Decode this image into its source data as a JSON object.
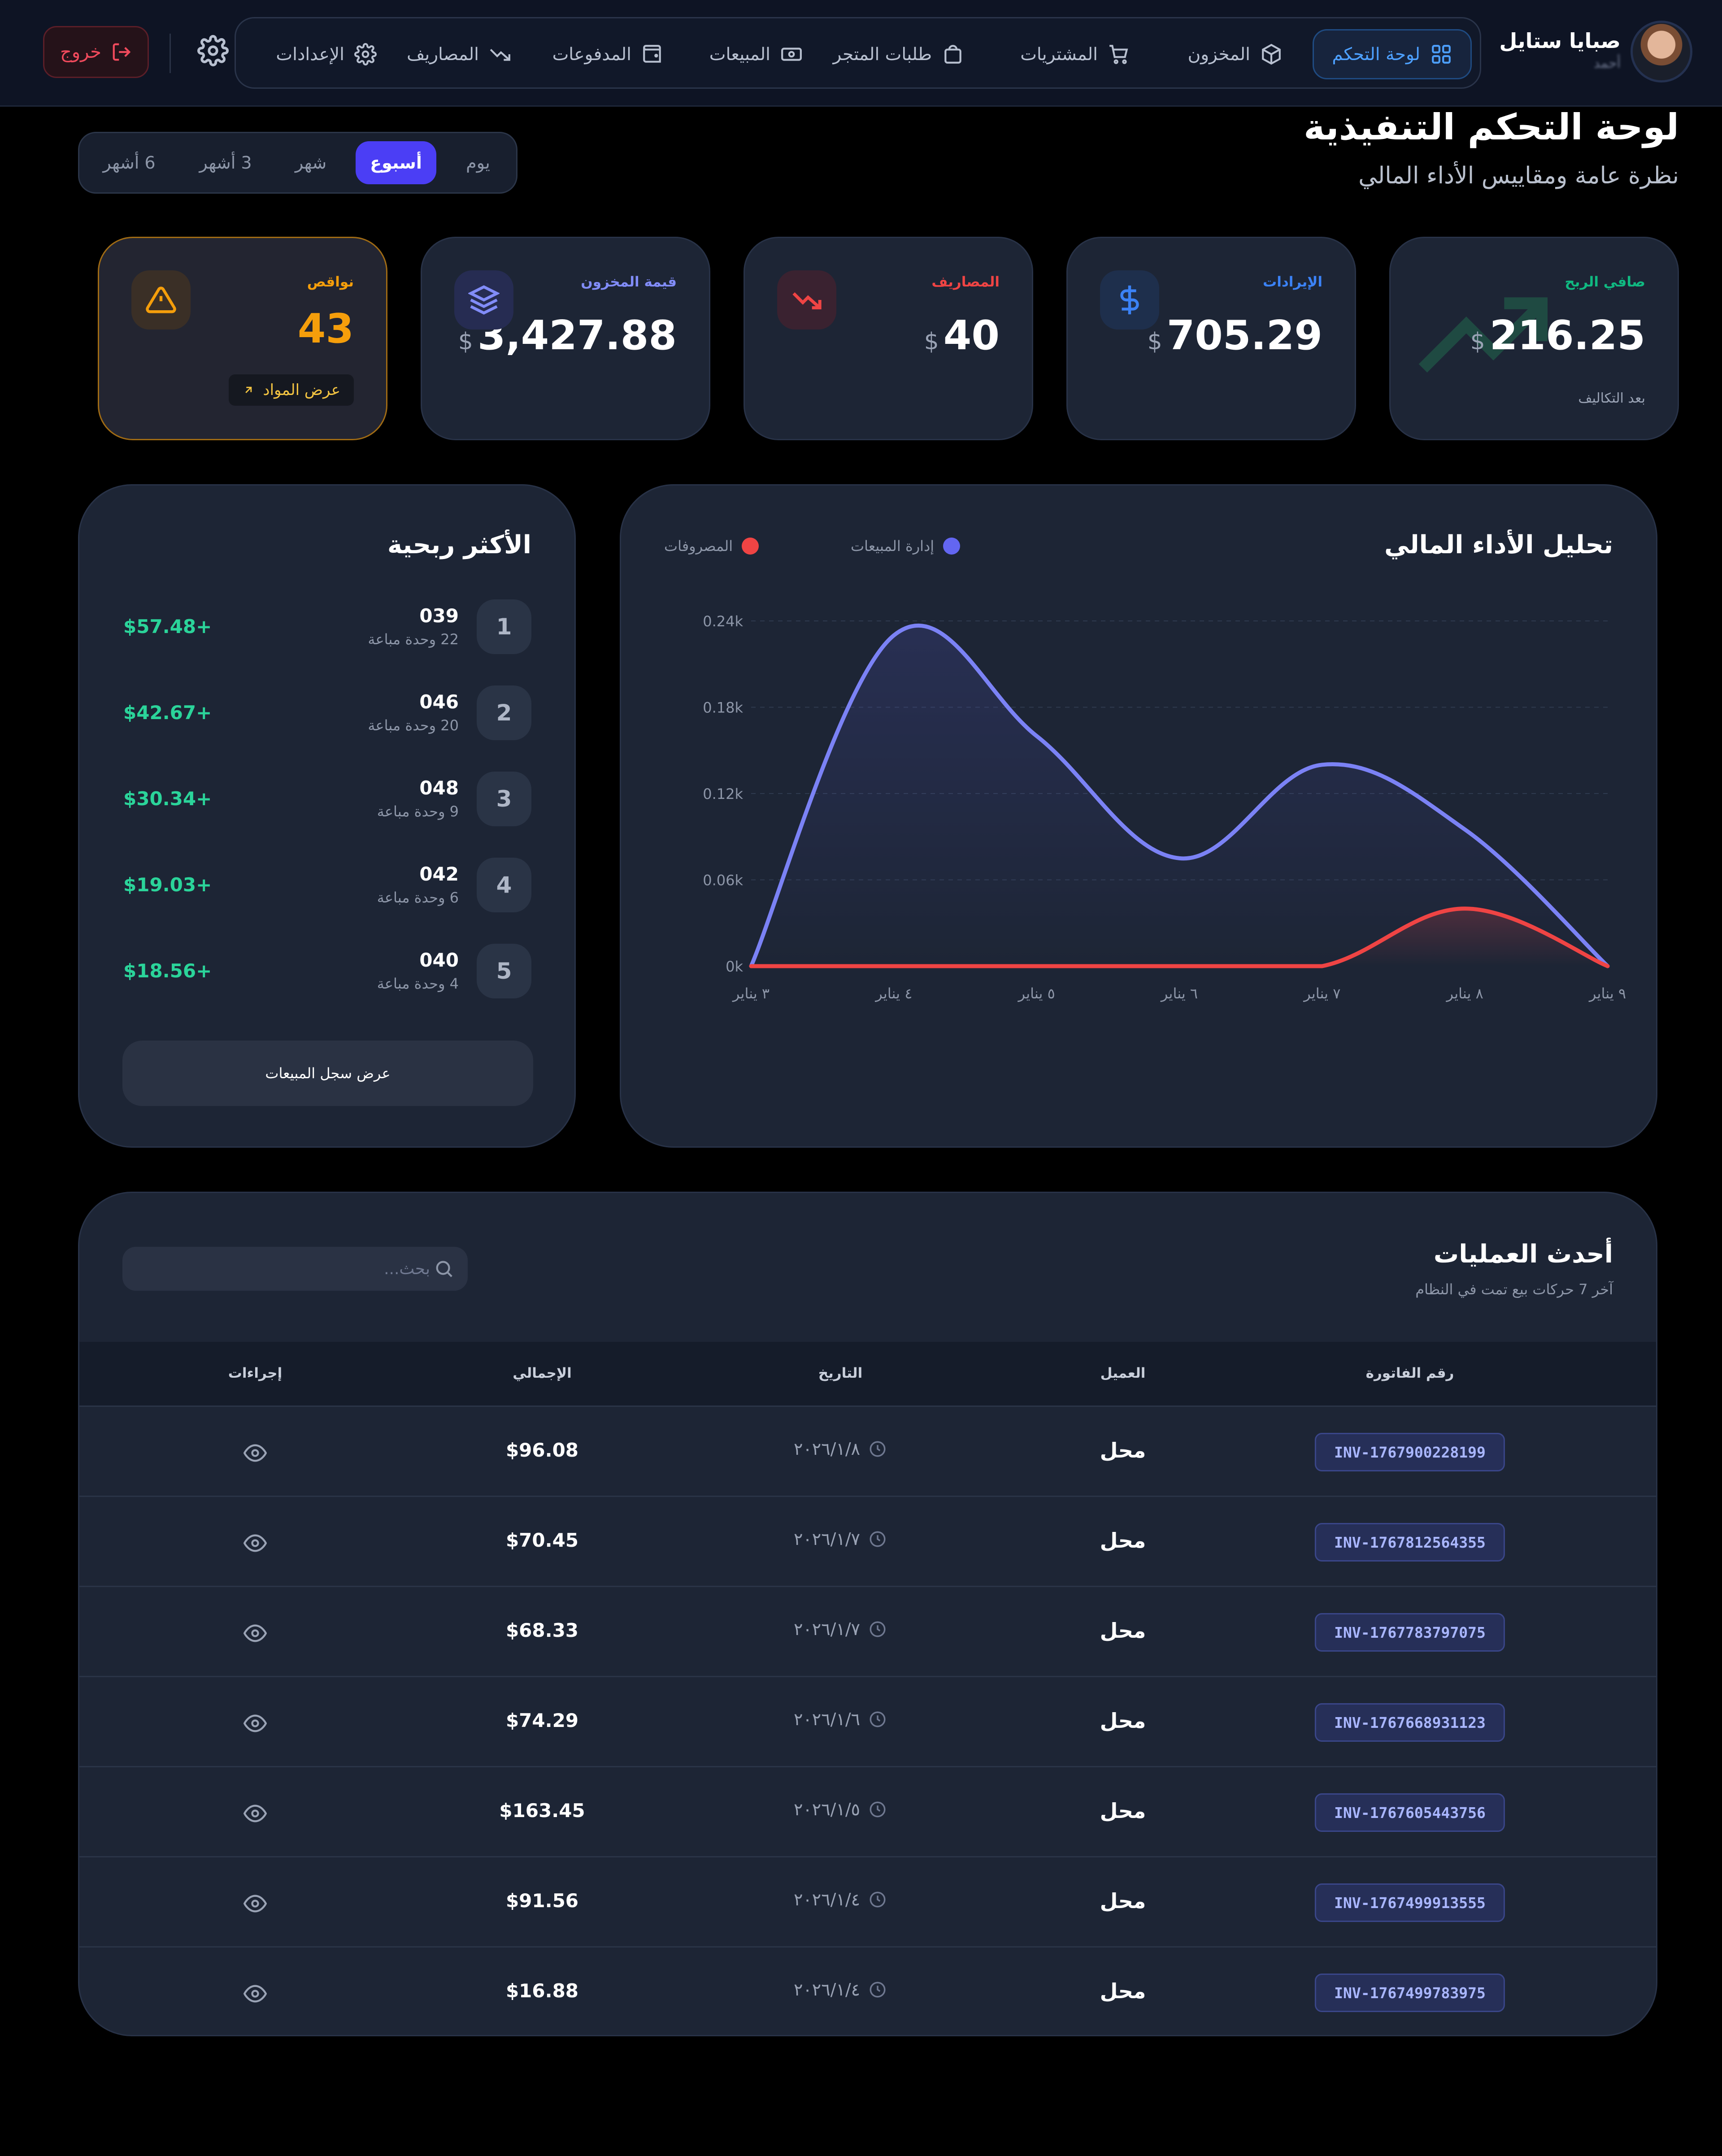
{
  "brand": {
    "name": "صبايا ستايل",
    "role": "أحمد"
  },
  "nav": {
    "items": [
      {
        "label": "لوحة التحكم",
        "icon": "dashboard-grid-icon"
      },
      {
        "label": "المخزون",
        "icon": "box-icon"
      },
      {
        "label": "المشتريات",
        "icon": "cart-icon"
      },
      {
        "label": "طلبات المتجر",
        "icon": "shopping-bag-icon"
      },
      {
        "label": "المبيعات",
        "icon": "banknote-icon"
      },
      {
        "label": "المدفوعات",
        "icon": "wallet-icon"
      },
      {
        "label": "المصاريف",
        "icon": "trending-down-icon"
      },
      {
        "label": "الإعدادات",
        "icon": "gear-icon"
      }
    ],
    "logout": "خروج"
  },
  "header": {
    "title": "لوحة التحكم التنفيذية",
    "subtitle": "نظرة عامة ومقاييس الأداء المالي"
  },
  "periods": {
    "items": [
      "يوم",
      "أسبوع",
      "شهر",
      "3 أشهر",
      "6 أشهر"
    ],
    "selected": "أسبوع"
  },
  "stats": {
    "net_profit": {
      "label": "صافي الربح",
      "value": "216.25",
      "currency": "$",
      "note": "بعد التكاليف",
      "color": "#10b981"
    },
    "revenue": {
      "label": "الإيرادات",
      "value": "705.29",
      "currency": "$",
      "color": "#3b82f6"
    },
    "expenses": {
      "label": "المصاريف",
      "value": "40",
      "currency": "$",
      "color": "#ef4444"
    },
    "inventory": {
      "label": "قيمة المخزون",
      "value": "3,427.88",
      "currency": "$",
      "color": "#6366f1"
    },
    "shortages": {
      "label": "نواقص",
      "value": "43",
      "button": "عرض المواد",
      "color": "#f59e0b"
    }
  },
  "chart": {
    "title": "تحليل الأداء المالي",
    "legend_sales": "إدارة المبيعات",
    "legend_expenses": "المصروفات"
  },
  "chart_data": {
    "type": "area",
    "x": [
      "٣ يناير",
      "٤ يناير",
      "٥ يناير",
      "٦ يناير",
      "٧ يناير",
      "٨ يناير",
      "٩ يناير"
    ],
    "y_ticks": [
      "0k",
      "0.06k",
      "0.12k",
      "0.18k",
      "0.24k"
    ],
    "ylim": [
      0,
      0.24
    ],
    "y_unit": "k",
    "series": [
      {
        "name": "إدارة المبيعات",
        "color": "#7b82f5",
        "values": [
          0,
          0.23,
          0.16,
          0.075,
          0.14,
          0.095,
          0
        ]
      },
      {
        "name": "المصروفات",
        "color": "#ef4444",
        "values": [
          0,
          0,
          0,
          0,
          0,
          0.04,
          0
        ]
      }
    ],
    "grid": true
  },
  "top": {
    "title": "الأكثر ربحية",
    "items": [
      {
        "rank": "1",
        "name": "039",
        "units": "22 وحدة مباعة",
        "profit": "$57.48+"
      },
      {
        "rank": "2",
        "name": "046",
        "units": "20 وحدة مباعة",
        "profit": "$42.67+"
      },
      {
        "rank": "3",
        "name": "048",
        "units": "9 وحدة مباعة",
        "profit": "$30.34+"
      },
      {
        "rank": "4",
        "name": "042",
        "units": "6 وحدة مباعة",
        "profit": "$19.03+"
      },
      {
        "rank": "5",
        "name": "040",
        "units": "4 وحدة مباعة",
        "profit": "$18.56+"
      }
    ],
    "button": "عرض سجل المبيعات"
  },
  "transactions": {
    "title": "أحدث العمليات",
    "subtitle": "آخر 7 حركات بيع تمت في النظام",
    "search_placeholder": "بحث...",
    "columns": [
      "رقم الفاتورة",
      "العميل",
      "التاريخ",
      "الإجمالي",
      "إجراءات"
    ],
    "rows": [
      {
        "invoice": "INV-1767900228199",
        "customer": "محل",
        "date": "٢٠٢٦/١/٨",
        "total": "$96.08"
      },
      {
        "invoice": "INV-1767812564355",
        "customer": "محل",
        "date": "٢٠٢٦/١/٧",
        "total": "$70.45"
      },
      {
        "invoice": "INV-1767783797075",
        "customer": "محل",
        "date": "٢٠٢٦/١/٧",
        "total": "$68.33"
      },
      {
        "invoice": "INV-1767668931123",
        "customer": "محل",
        "date": "٢٠٢٦/١/٦",
        "total": "$74.29"
      },
      {
        "invoice": "INV-1767605443756",
        "customer": "محل",
        "date": "٢٠٢٦/١/٥",
        "total": "$163.45"
      },
      {
        "invoice": "INV-1767499913555",
        "customer": "محل",
        "date": "٢٠٢٦/١/٤",
        "total": "$91.56"
      },
      {
        "invoice": "INV-1767499783975",
        "customer": "محل",
        "date": "٢٠٢٦/١/٤",
        "total": "$16.88"
      }
    ]
  }
}
